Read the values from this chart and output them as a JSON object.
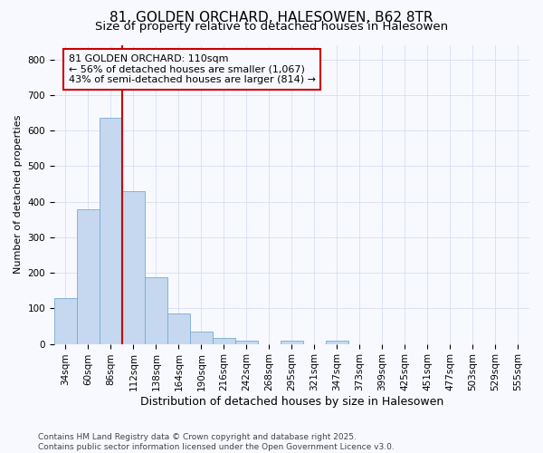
{
  "title1": "81, GOLDEN ORCHARD, HALESOWEN, B62 8TR",
  "title2": "Size of property relative to detached houses in Halesowen",
  "xlabel": "Distribution of detached houses by size in Halesowen",
  "ylabel": "Number of detached properties",
  "categories": [
    "34sqm",
    "60sqm",
    "86sqm",
    "112sqm",
    "138sqm",
    "164sqm",
    "190sqm",
    "216sqm",
    "242sqm",
    "268sqm",
    "295sqm",
    "321sqm",
    "347sqm",
    "373sqm",
    "399sqm",
    "425sqm",
    "451sqm",
    "477sqm",
    "503sqm",
    "529sqm",
    "555sqm"
  ],
  "values": [
    130,
    378,
    635,
    430,
    188,
    85,
    35,
    18,
    8,
    0,
    8,
    0,
    8,
    0,
    0,
    0,
    0,
    0,
    0,
    0,
    0
  ],
  "bar_color": "#c5d8f0",
  "bar_edge_color": "#7aaad0",
  "vline_color": "#cc0000",
  "vline_pos": 2.5,
  "annotation_text": "81 GOLDEN ORCHARD: 110sqm\n← 56% of detached houses are smaller (1,067)\n43% of semi-detached houses are larger (814) →",
  "annotation_box_color": "#cc0000",
  "ylim": [
    0,
    840
  ],
  "yticks": [
    0,
    100,
    200,
    300,
    400,
    500,
    600,
    700,
    800
  ],
  "bg_color": "#f7f9ff",
  "grid_color": "#d0d8ee",
  "footer_text": "Contains HM Land Registry data © Crown copyright and database right 2025.\nContains public sector information licensed under the Open Government Licence v3.0.",
  "title1_fontsize": 11,
  "title2_fontsize": 9.5,
  "xlabel_fontsize": 9,
  "ylabel_fontsize": 8,
  "tick_fontsize": 7.5,
  "ann_fontsize": 8,
  "footer_fontsize": 6.5
}
